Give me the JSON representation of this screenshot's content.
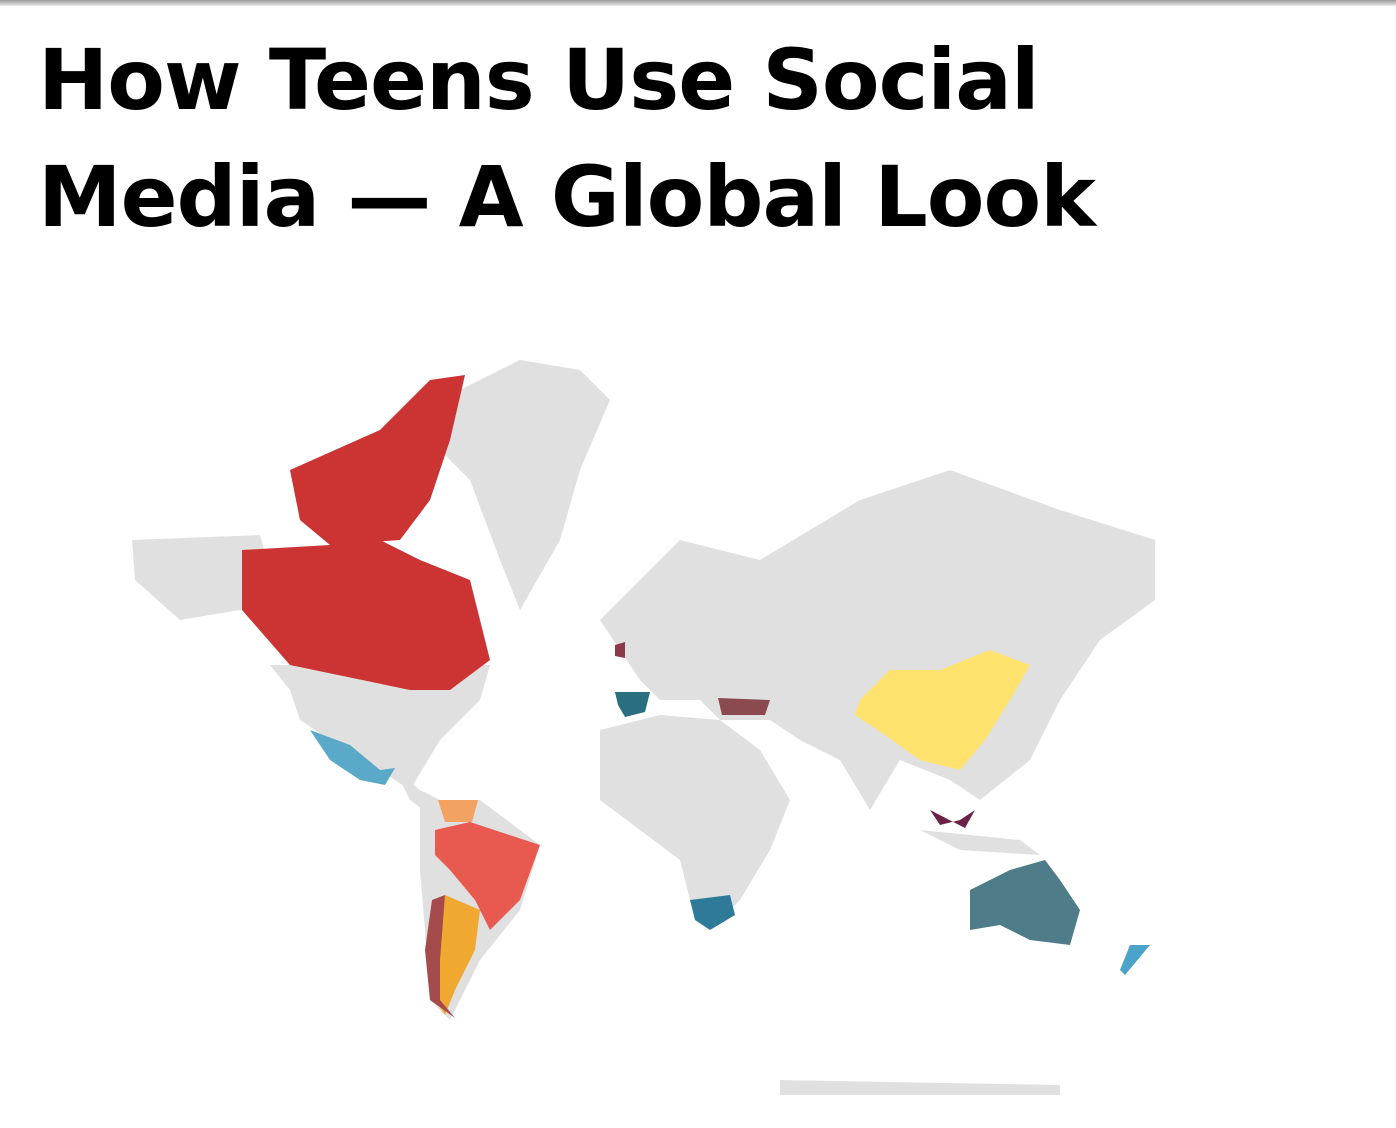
{
  "header": {
    "title": "How Teens Use Social Media — A Global Look"
  }
}
